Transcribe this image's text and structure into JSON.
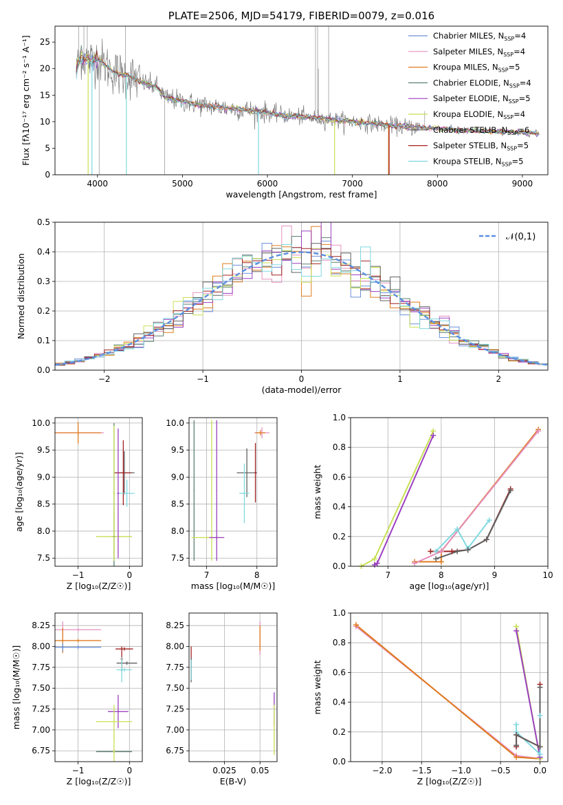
{
  "colors": {
    "chabrier_miles": "#6a8fd8",
    "salpeter_miles": "#e58fbf",
    "kroupa_miles": "#e07b1d",
    "chabrier_elodie": "#5a7f6f",
    "salpeter_elodie": "#9a3fc0",
    "kroupa_elodie": "#c8df52",
    "chabrier_stelib": "#606060",
    "salpeter_stelib": "#a02020",
    "kroupa_stelib": "#7fd8e0",
    "grid": "#b0b0b0",
    "normal_curve": "#5b8ee0"
  },
  "chart_data": [
    {
      "type": "line",
      "title": "PLATE=2506, MJD=54179, FIBERID=0079, z=0.016",
      "xlabel": "wavelength [Angstrom, rest frame]",
      "ylabel": "Flux [fλ10⁻¹⁷ erg cm⁻² s⁻¹ A⁻¹]",
      "xlim": [
        3500,
        9300
      ],
      "ylim": [
        0,
        28
      ],
      "xticks": [
        4000,
        5000,
        6000,
        7000,
        8000,
        9000
      ],
      "yticks": [
        0,
        5,
        10,
        15,
        20,
        25
      ],
      "grid": false,
      "legend_position": "top-right",
      "legend": [
        {
          "label": "Chabrier MILES, N",
          "sub": "SSP",
          "tail": "=4",
          "color_key": "chabrier_miles"
        },
        {
          "label": "Salpeter MILES, N",
          "sub": "SSP",
          "tail": "=4",
          "color_key": "salpeter_miles"
        },
        {
          "label": "Kroupa MILES, N",
          "sub": "SSP",
          "tail": "=5",
          "color_key": "kroupa_miles"
        },
        {
          "label": "Chabrier ELODIE, N",
          "sub": "SSP",
          "tail": "=4",
          "color_key": "chabrier_elodie"
        },
        {
          "label": "Salpeter ELODIE, N",
          "sub": "SSP",
          "tail": "=5",
          "color_key": "salpeter_elodie"
        },
        {
          "label": "Kroupa ELODIE, N",
          "sub": "SSP",
          "tail": "=4",
          "color_key": "kroupa_elodie"
        },
        {
          "label": "Chabrier STELIB, N",
          "sub": "SSP",
          "tail": "=6",
          "color_key": "chabrier_stelib"
        },
        {
          "label": "Salpeter STELIB, N",
          "sub": "SSP",
          "tail": "=5",
          "color_key": "salpeter_stelib"
        },
        {
          "label": "Kroupa STELIB, N",
          "sub": "SSP",
          "tail": "=5",
          "color_key": "kroupa_stelib"
        }
      ],
      "series_model": {
        "x": [
          3750,
          3800,
          3900,
          4000,
          4100,
          4200,
          4300,
          4400,
          4500,
          4700,
          4800,
          5000,
          5200,
          5500,
          5800,
          6000,
          6200,
          6500,
          6800,
          7000,
          7200,
          7500,
          7800,
          8000,
          8300,
          8600,
          9000,
          9200
        ],
        "y": [
          19.5,
          22.5,
          21.5,
          22,
          20.5,
          19.3,
          18.8,
          18.5,
          17.5,
          16.5,
          14.5,
          13.8,
          13.2,
          12.6,
          12.1,
          11.7,
          11.2,
          10.8,
          10.3,
          10.0,
          9.7,
          9.2,
          8.9,
          8.7,
          8.4,
          8.2,
          7.9,
          7.8
        ]
      }
    },
    {
      "type": "histogram",
      "xlabel": "(data-model)/error",
      "ylabel": "Normed distribution",
      "xlim": [
        -2.5,
        2.5
      ],
      "ylim": [
        0,
        0.5
      ],
      "xticks": [
        -2,
        -1,
        0,
        1,
        2
      ],
      "yticks": [
        0.0,
        0.1,
        0.2,
        0.3,
        0.4,
        0.5
      ],
      "grid": true,
      "legend_position": "top-right",
      "curve_label": "𝒩(0,1)",
      "bin_width": 0.1
    },
    {
      "type": "scatter",
      "xlabel": "Z [log₁₀(Z/Z☉)]",
      "ylabel": "age  [log₁₀(age/yr)]",
      "xlim": [
        -1.45,
        0.25
      ],
      "ylim": [
        7.35,
        10.1
      ],
      "xticks": [
        -1,
        0
      ],
      "yticks": [
        7.5,
        8.0,
        8.5,
        9.0,
        9.5,
        10.0
      ],
      "grid": true,
      "points": [
        {
          "x": -1.0,
          "y": 9.82,
          "xerr": 0.5,
          "yerr": 0.05,
          "color_key": "salpeter_miles"
        },
        {
          "x": -1.0,
          "y": 9.82,
          "xerr": 0.45,
          "yerr": 0.2,
          "color_key": "kroupa_miles"
        },
        {
          "x": -0.1,
          "y": 9.08,
          "xerr": 0.2,
          "yerr": 0.4,
          "color_key": "chabrier_stelib"
        },
        {
          "x": -0.12,
          "y": 9.08,
          "xerr": 0.16,
          "yerr": 0.6,
          "color_key": "salpeter_stelib"
        },
        {
          "x": -0.05,
          "y": 8.7,
          "xerr": 0.15,
          "yerr": 0.25,
          "color_key": "kroupa_stelib"
        },
        {
          "x": -0.3,
          "y": 7.9,
          "xerr": 0.35,
          "yerr": 0.45,
          "color_key": "kroupa_elodie"
        },
        {
          "x": -0.3,
          "y": 7.9,
          "xerr": 0.02,
          "yerr": 2.1,
          "color_key": "chabrier_elodie"
        },
        {
          "x": -0.3,
          "y": 8.7,
          "xerr": 0.02,
          "yerr": 1.25,
          "color_key": "kroupa_elodie"
        },
        {
          "x": -0.22,
          "y": 8.7,
          "xerr": 0.02,
          "yerr": 1.2,
          "color_key": "salpeter_elodie"
        }
      ]
    },
    {
      "type": "scatter",
      "xlabel": "mass [log₁₀(M/M☉)]",
      "xlim": [
        6.65,
        8.4
      ],
      "ylim": [
        7.35,
        10.1
      ],
      "xticks": [
        7,
        8
      ],
      "yticks": [
        7.5,
        8.0,
        8.5,
        9.0,
        9.5,
        10.0
      ],
      "grid": true,
      "points": [
        {
          "x": 6.75,
          "y": 8.75,
          "xerr": 0.01,
          "yerr": 1.3,
          "color_key": "chabrier_elodie"
        },
        {
          "x": 7.1,
          "y": 8.75,
          "xerr": 0.01,
          "yerr": 1.3,
          "color_key": "kroupa_elodie"
        },
        {
          "x": 7.2,
          "y": 8.75,
          "xerr": 0.01,
          "yerr": 1.3,
          "color_key": "salpeter_elodie"
        },
        {
          "x": 7.0,
          "y": 7.88,
          "xerr": 0.3,
          "yerr": 0.02,
          "color_key": "kroupa_elodie"
        },
        {
          "x": 7.2,
          "y": 7.88,
          "xerr": 0.15,
          "yerr": 0.02,
          "color_key": "salpeter_elodie"
        },
        {
          "x": 7.8,
          "y": 9.08,
          "xerr": 0.2,
          "yerr": 0.45,
          "color_key": "chabrier_stelib"
        },
        {
          "x": 7.97,
          "y": 9.08,
          "xerr": 0.02,
          "yerr": 0.55,
          "color_key": "salpeter_stelib"
        },
        {
          "x": 7.75,
          "y": 8.7,
          "xerr": 0.1,
          "yerr": 0.55,
          "color_key": "kroupa_stelib"
        },
        {
          "x": 8.1,
          "y": 9.82,
          "xerr": 0.15,
          "yerr": 0.1,
          "color_key": "salpeter_miles"
        },
        {
          "x": 8.07,
          "y": 9.82,
          "xerr": 0.1,
          "yerr": 0.05,
          "color_key": "kroupa_miles"
        }
      ]
    },
    {
      "type": "line",
      "xlabel": "age  [log₁₀(age/yr)]",
      "ylabel": "mass weight",
      "xlim": [
        6.3,
        10.0
      ],
      "ylim": [
        0,
        1.0
      ],
      "xticks": [
        7,
        8,
        9,
        10
      ],
      "yticks": [
        0.0,
        0.2,
        0.4,
        0.6,
        0.8,
        1.0
      ],
      "grid": true,
      "series": [
        {
          "color_key": "kroupa_elodie",
          "x": [
            6.5,
            6.75,
            7.85
          ],
          "y": [
            0.0,
            0.05,
            0.91
          ]
        },
        {
          "color_key": "salpeter_elodie",
          "x": [
            6.75,
            6.8,
            7.85
          ],
          "y": [
            0.01,
            0.02,
            0.88
          ]
        },
        {
          "color_key": "kroupa_miles",
          "x": [
            7.5,
            8.0,
            8.0,
            9.82
          ],
          "y": [
            0.03,
            0.03,
            0.1,
            0.92
          ]
        },
        {
          "color_key": "salpeter_miles",
          "x": [
            7.5,
            8.0,
            9.82
          ],
          "y": [
            0.02,
            0.1,
            0.91
          ]
        },
        {
          "color_key": "kroupa_stelib",
          "x": [
            7.9,
            8.3,
            8.5,
            8.9
          ],
          "y": [
            0.1,
            0.25,
            0.12,
            0.31
          ]
        },
        {
          "color_key": "salpeter_stelib",
          "x": [
            7.8,
            8.2,
            8.5,
            8.85,
            9.3
          ],
          "y": [
            0.1,
            0.1,
            0.11,
            0.18,
            0.52
          ]
        },
        {
          "color_key": "chabrier_stelib",
          "x": [
            7.9,
            8.3,
            8.5,
            8.85,
            9.3
          ],
          "y": [
            0.05,
            0.1,
            0.11,
            0.18,
            0.51
          ]
        }
      ]
    },
    {
      "type": "scatter",
      "xlabel": "Z [log₁₀(Z/Z☉)]",
      "ylabel": "mass [log₁₀(M/M☉)]",
      "xlim": [
        -1.45,
        0.25
      ],
      "ylim": [
        6.62,
        8.4
      ],
      "xticks": [
        -1,
        0
      ],
      "yticks": [
        6.75,
        7.0,
        7.25,
        7.5,
        7.75,
        8.0,
        8.25
      ],
      "grid": true,
      "points": [
        {
          "x": -1.3,
          "y": 8.2,
          "xerr": 0.02,
          "yerr": 0.1,
          "color_key": "salpeter_miles"
        },
        {
          "x": -1.0,
          "y": 8.2,
          "xerr": 0.45,
          "yerr": 0.02,
          "color_key": "salpeter_miles"
        },
        {
          "x": -1.3,
          "y": 8.07,
          "xerr": 0.02,
          "yerr": 0.15,
          "color_key": "kroupa_miles"
        },
        {
          "x": -1.0,
          "y": 8.07,
          "xerr": 0.45,
          "yerr": 0.02,
          "color_key": "kroupa_miles"
        },
        {
          "x": -1.3,
          "y": 7.99,
          "xerr": 0.02,
          "yerr": 0.05,
          "color_key": "chabrier_miles"
        },
        {
          "x": -1.0,
          "y": 7.99,
          "xerr": 0.45,
          "yerr": 0.02,
          "color_key": "chabrier_miles"
        },
        {
          "x": -0.1,
          "y": 7.97,
          "xerr": 0.17,
          "yerr": 0.02,
          "color_key": "salpeter_stelib"
        },
        {
          "x": -0.15,
          "y": 7.85,
          "xerr": 0.02,
          "yerr": 0.15,
          "color_key": "salpeter_stelib"
        },
        {
          "x": -0.05,
          "y": 7.8,
          "xerr": 0.2,
          "yerr": 0.02,
          "color_key": "chabrier_stelib"
        },
        {
          "x": -0.15,
          "y": 7.72,
          "xerr": 0.02,
          "yerr": 0.15,
          "color_key": "kroupa_stelib"
        },
        {
          "x": -0.1,
          "y": 7.72,
          "xerr": 0.15,
          "yerr": 0.02,
          "color_key": "kroupa_stelib"
        },
        {
          "x": -0.22,
          "y": 7.22,
          "xerr": 0.2,
          "yerr": 0.2,
          "color_key": "salpeter_elodie"
        },
        {
          "x": -0.3,
          "y": 7.1,
          "xerr": 0.35,
          "yerr": 0.2,
          "color_key": "kroupa_elodie"
        },
        {
          "x": -0.3,
          "y": 6.74,
          "xerr": 0.35,
          "yerr": 0.02,
          "color_key": "chabrier_elodie"
        },
        {
          "x": -0.3,
          "y": 6.74,
          "xerr": 0.02,
          "yerr": 0.2,
          "color_key": "kroupa_elodie"
        }
      ]
    },
    {
      "type": "scatter",
      "xlabel": "E(B-V)",
      "xlim": [
        0.0,
        0.062
      ],
      "ylim": [
        6.62,
        8.4
      ],
      "xticks": [
        0.025,
        0.05
      ],
      "yticks": [
        6.75,
        7.0,
        7.25,
        7.5,
        7.75,
        8.0,
        8.25
      ],
      "grid": true,
      "points": [
        {
          "x": 0.0015,
          "y": 7.8,
          "xerr": 0.0,
          "yerr": 0.2,
          "color_key": "salpeter_stelib"
        },
        {
          "x": 0.0015,
          "y": 7.72,
          "xerr": 0.0,
          "yerr": 0.15,
          "color_key": "chabrier_stelib"
        },
        {
          "x": 0.0015,
          "y": 7.72,
          "xerr": 0.0,
          "yerr": 0.12,
          "color_key": "kroupa_stelib"
        },
        {
          "x": 0.05,
          "y": 8.1,
          "xerr": 0.0,
          "yerr": 0.2,
          "color_key": "salpeter_miles"
        },
        {
          "x": 0.05,
          "y": 8.1,
          "xerr": 0.0,
          "yerr": 0.15,
          "color_key": "kroupa_miles"
        },
        {
          "x": 0.06,
          "y": 7.25,
          "xerr": 0.0,
          "yerr": 0.2,
          "color_key": "salpeter_elodie"
        },
        {
          "x": 0.06,
          "y": 7.0,
          "xerr": 0.0,
          "yerr": 0.3,
          "color_key": "kroupa_elodie"
        }
      ]
    },
    {
      "type": "line",
      "xlabel": "Z [log₁₀(Z/Z☉)]",
      "ylabel": "mass weight",
      "xlim": [
        -2.4,
        0.1
      ],
      "ylim": [
        0,
        1.0
      ],
      "xticks": [
        -2.0,
        -1.5,
        -1.0,
        -0.5,
        0.0
      ],
      "yticks": [
        0.0,
        0.2,
        0.4,
        0.6,
        0.8,
        1.0
      ],
      "grid": true,
      "series": [
        {
          "color_key": "salpeter_miles",
          "x": [
            -2.33,
            -0.3,
            0.0
          ],
          "y": [
            0.91,
            0.04,
            0.02
          ]
        },
        {
          "color_key": "kroupa_miles",
          "x": [
            -2.33,
            -0.3,
            0.0
          ],
          "y": [
            0.92,
            0.03,
            0.02
          ]
        },
        {
          "color_key": "kroupa_elodie",
          "x": [
            -0.3,
            0.0
          ],
          "y": [
            0.91,
            0.02
          ]
        },
        {
          "color_key": "salpeter_elodie",
          "x": [
            -0.3,
            0.0
          ],
          "y": [
            0.88,
            0.03
          ]
        },
        {
          "color_key": "kroupa_stelib",
          "x": [
            -0.3,
            -0.3,
            0.0,
            0.0
          ],
          "y": [
            0.25,
            0.2,
            0.05,
            0.31
          ]
        },
        {
          "color_key": "salpeter_stelib",
          "x": [
            -0.3,
            -0.3,
            0.0,
            0.0
          ],
          "y": [
            0.1,
            0.18,
            0.1,
            0.52
          ]
        },
        {
          "color_key": "chabrier_stelib",
          "x": [
            -0.3,
            -0.3,
            0.0,
            0.0
          ],
          "y": [
            0.11,
            0.18,
            0.1,
            0.5
          ]
        }
      ]
    }
  ]
}
